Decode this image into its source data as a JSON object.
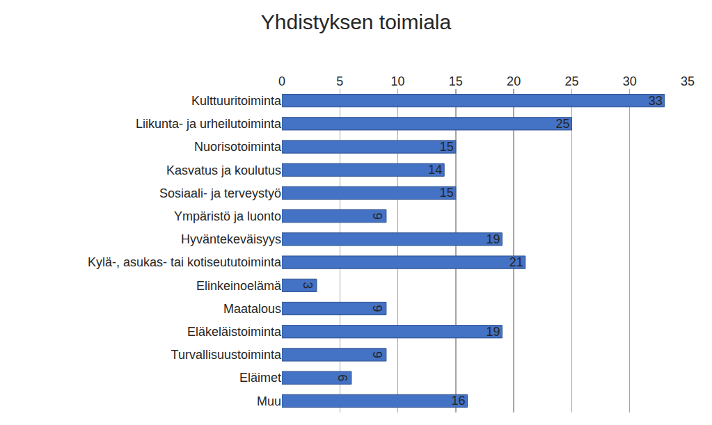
{
  "chart_data": {
    "type": "bar",
    "title": "Yhdistyksen toimiala",
    "orientation": "horizontal",
    "categories": [
      "Kulttuuritoiminta",
      "Liikunta- ja urheilutoiminta",
      "Nuorisotoiminta",
      "Kasvatus ja koulutus",
      "Sosiaali- ja terveystyö",
      "Ympäristö ja luonto",
      "Hyväntekeväisyys",
      "Kylä-, asukas- tai kotiseututoiminta",
      "Elinkeinoelämä",
      "Maatalous",
      "Eläkeläistoiminta",
      "Turvallisuustoiminta",
      "Eläimet",
      "Muu"
    ],
    "values": [
      33,
      25,
      15,
      14,
      15,
      9,
      19,
      21,
      3,
      9,
      19,
      9,
      6,
      16
    ],
    "color": "#4472c4",
    "xlim": [
      0,
      35
    ],
    "xticks": [
      0,
      5,
      10,
      15,
      20,
      25,
      30,
      35
    ],
    "grid": true,
    "data_labels": true
  }
}
